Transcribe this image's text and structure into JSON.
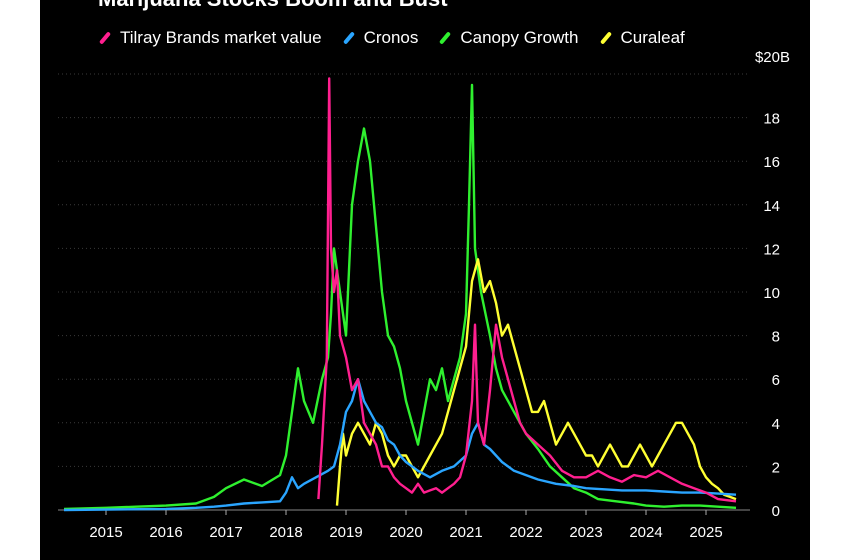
{
  "colors": {
    "background": "#000000",
    "gridline": "#3a3a3a",
    "text": "#ffffff",
    "tilray": "#ff1f8f",
    "cronos": "#2aa5ff",
    "canopy": "#2ff02f",
    "curaleaf": "#ffff33"
  },
  "chart_data": {
    "type": "line",
    "title": "Marijuana Stocks Boom and Bust",
    "unit_top_label": "$20B",
    "xlabel": "",
    "ylabel": "",
    "xlim": [
      2014.2,
      2025.6
    ],
    "ylim": [
      0,
      20
    ],
    "x_ticks": [
      2015,
      2016,
      2017,
      2018,
      2019,
      2020,
      2021,
      2022,
      2023,
      2024,
      2025
    ],
    "x_tick_labels": [
      "2015",
      "2016",
      "2017",
      "2018",
      "2019",
      "2020",
      "2021",
      "2022",
      "2023",
      "2024",
      "2025"
    ],
    "y_ticks": [
      0,
      2,
      4,
      6,
      8,
      10,
      12,
      14,
      16,
      18
    ],
    "y_tick_labels": [
      "0",
      "2",
      "4",
      "6",
      "8",
      "10",
      "12",
      "14",
      "16",
      "18"
    ],
    "grid": true,
    "y_axis_side": "right",
    "legend_position": "top-left",
    "series": [
      {
        "name": "Canopy Growth",
        "color_key": "canopy",
        "x": [
          2014.3,
          2015.0,
          2015.5,
          2016.0,
          2016.5,
          2016.8,
          2017.0,
          2017.3,
          2017.6,
          2017.9,
          2018.0,
          2018.1,
          2018.2,
          2018.3,
          2018.45,
          2018.6,
          2018.7,
          2018.75,
          2018.8,
          2018.9,
          2019.0,
          2019.1,
          2019.2,
          2019.3,
          2019.4,
          2019.5,
          2019.6,
          2019.7,
          2019.8,
          2019.9,
          2020.0,
          2020.1,
          2020.2,
          2020.3,
          2020.4,
          2020.5,
          2020.6,
          2020.7,
          2020.8,
          2020.9,
          2021.0,
          2021.05,
          2021.1,
          2021.15,
          2021.25,
          2021.4,
          2021.5,
          2021.6,
          2021.8,
          2022.0,
          2022.2,
          2022.4,
          2022.6,
          2022.8,
          2023.0,
          2023.2,
          2023.5,
          2023.8,
          2024.0,
          2024.3,
          2024.6,
          2024.9,
          2025.2,
          2025.5
        ],
        "values": [
          0.05,
          0.1,
          0.15,
          0.2,
          0.3,
          0.6,
          1.0,
          1.4,
          1.1,
          1.6,
          2.5,
          4.5,
          6.5,
          5.0,
          4.0,
          6.0,
          7.0,
          9.0,
          12.0,
          10.0,
          8.0,
          14.0,
          16.0,
          17.5,
          16.0,
          13.0,
          10.0,
          8.0,
          7.5,
          6.5,
          5.0,
          4.0,
          3.0,
          4.5,
          6.0,
          5.5,
          6.5,
          5.0,
          6.0,
          7.0,
          9.0,
          14.0,
          19.5,
          12.0,
          10.0,
          8.0,
          6.5,
          5.5,
          4.5,
          3.5,
          2.8,
          2.0,
          1.5,
          1.0,
          0.8,
          0.5,
          0.4,
          0.3,
          0.2,
          0.15,
          0.2,
          0.2,
          0.15,
          0.1
        ]
      },
      {
        "name": "Curaleaf",
        "color_key": "curaleaf",
        "x": [
          2018.85,
          2018.9,
          2018.95,
          2019.0,
          2019.1,
          2019.2,
          2019.3,
          2019.4,
          2019.5,
          2019.6,
          2019.7,
          2019.8,
          2019.9,
          2020.0,
          2020.1,
          2020.2,
          2020.3,
          2020.4,
          2020.5,
          2020.6,
          2020.7,
          2020.8,
          2020.9,
          2021.0,
          2021.05,
          2021.1,
          2021.2,
          2021.3,
          2021.4,
          2021.5,
          2021.6,
          2021.7,
          2021.8,
          2021.9,
          2022.0,
          2022.1,
          2022.2,
          2022.3,
          2022.4,
          2022.5,
          2022.6,
          2022.7,
          2022.8,
          2022.9,
          2023.0,
          2023.1,
          2023.2,
          2023.3,
          2023.4,
          2023.5,
          2023.6,
          2023.7,
          2023.8,
          2023.9,
          2024.0,
          2024.1,
          2024.2,
          2024.3,
          2024.4,
          2024.5,
          2024.6,
          2024.7,
          2024.8,
          2024.9,
          2025.0,
          2025.1,
          2025.2,
          2025.3,
          2025.4,
          2025.5
        ],
        "values": [
          0.2,
          2.0,
          3.5,
          2.5,
          3.5,
          4.0,
          3.5,
          3.0,
          4.0,
          3.5,
          2.5,
          2.0,
          2.5,
          2.5,
          2.0,
          1.5,
          2.0,
          2.5,
          3.0,
          3.5,
          4.5,
          5.5,
          6.5,
          7.5,
          9.0,
          10.5,
          11.5,
          10.0,
          10.5,
          9.5,
          8.0,
          8.5,
          7.5,
          6.5,
          5.5,
          4.5,
          4.5,
          5.0,
          4.0,
          3.0,
          3.5,
          4.0,
          3.5,
          3.0,
          2.5,
          2.5,
          2.0,
          2.5,
          3.0,
          2.5,
          2.0,
          2.0,
          2.5,
          3.0,
          2.5,
          2.0,
          2.5,
          3.0,
          3.5,
          4.0,
          4.0,
          3.5,
          3.0,
          2.0,
          1.5,
          1.2,
          1.0,
          0.7,
          0.6,
          0.5
        ]
      },
      {
        "name": "Cronos",
        "color_key": "cronos",
        "x": [
          2014.3,
          2015.0,
          2016.0,
          2016.5,
          2016.8,
          2017.0,
          2017.3,
          2017.6,
          2017.9,
          2018.0,
          2018.1,
          2018.2,
          2018.3,
          2018.5,
          2018.7,
          2018.8,
          2018.9,
          2019.0,
          2019.1,
          2019.2,
          2019.3,
          2019.4,
          2019.5,
          2019.6,
          2019.7,
          2019.8,
          2019.9,
          2020.0,
          2020.2,
          2020.4,
          2020.6,
          2020.8,
          2021.0,
          2021.1,
          2021.2,
          2021.3,
          2021.4,
          2021.6,
          2021.8,
          2022.0,
          2022.2,
          2022.5,
          2022.8,
          2023.0,
          2023.3,
          2023.6,
          2024.0,
          2024.3,
          2024.6,
          2024.9,
          2025.2,
          2025.5
        ],
        "values": [
          0.0,
          0.02,
          0.05,
          0.1,
          0.15,
          0.2,
          0.3,
          0.35,
          0.4,
          0.8,
          1.5,
          1.0,
          1.2,
          1.5,
          1.8,
          2.0,
          3.0,
          4.5,
          5.0,
          6.0,
          5.0,
          4.5,
          4.0,
          3.8,
          3.2,
          3.0,
          2.5,
          2.2,
          1.8,
          1.5,
          1.8,
          2.0,
          2.5,
          3.5,
          4.0,
          3.0,
          2.8,
          2.2,
          1.8,
          1.6,
          1.4,
          1.2,
          1.1,
          1.0,
          0.95,
          0.9,
          0.9,
          0.85,
          0.8,
          0.8,
          0.75,
          0.7
        ]
      },
      {
        "name": "Tilray Brands market value",
        "color_key": "tilray",
        "x": [
          2018.54,
          2018.6,
          2018.68,
          2018.72,
          2018.75,
          2018.8,
          2018.85,
          2018.9,
          2019.0,
          2019.1,
          2019.2,
          2019.3,
          2019.4,
          2019.5,
          2019.6,
          2019.7,
          2019.8,
          2019.9,
          2020.0,
          2020.1,
          2020.2,
          2020.3,
          2020.4,
          2020.5,
          2020.6,
          2020.7,
          2020.8,
          2020.9,
          2021.0,
          2021.1,
          2021.15,
          2021.2,
          2021.3,
          2021.4,
          2021.5,
          2021.6,
          2021.7,
          2021.8,
          2021.9,
          2022.0,
          2022.2,
          2022.4,
          2022.6,
          2022.8,
          2023.0,
          2023.2,
          2023.4,
          2023.6,
          2023.8,
          2024.0,
          2024.2,
          2024.4,
          2024.6,
          2024.8,
          2025.0,
          2025.2,
          2025.5
        ],
        "values": [
          0.5,
          3.0,
          7.0,
          19.8,
          12.0,
          10.0,
          11.0,
          8.0,
          7.0,
          5.5,
          6.0,
          4.0,
          3.5,
          3.0,
          2.0,
          2.0,
          1.5,
          1.2,
          1.0,
          0.8,
          1.2,
          0.8,
          0.9,
          1.0,
          0.8,
          1.0,
          1.2,
          1.5,
          2.5,
          5.0,
          8.5,
          4.0,
          3.0,
          5.5,
          8.5,
          7.0,
          6.0,
          5.0,
          4.0,
          3.5,
          3.0,
          2.5,
          1.8,
          1.5,
          1.5,
          1.8,
          1.5,
          1.3,
          1.6,
          1.5,
          1.8,
          1.5,
          1.2,
          1.0,
          0.8,
          0.5,
          0.4
        ]
      }
    ]
  }
}
